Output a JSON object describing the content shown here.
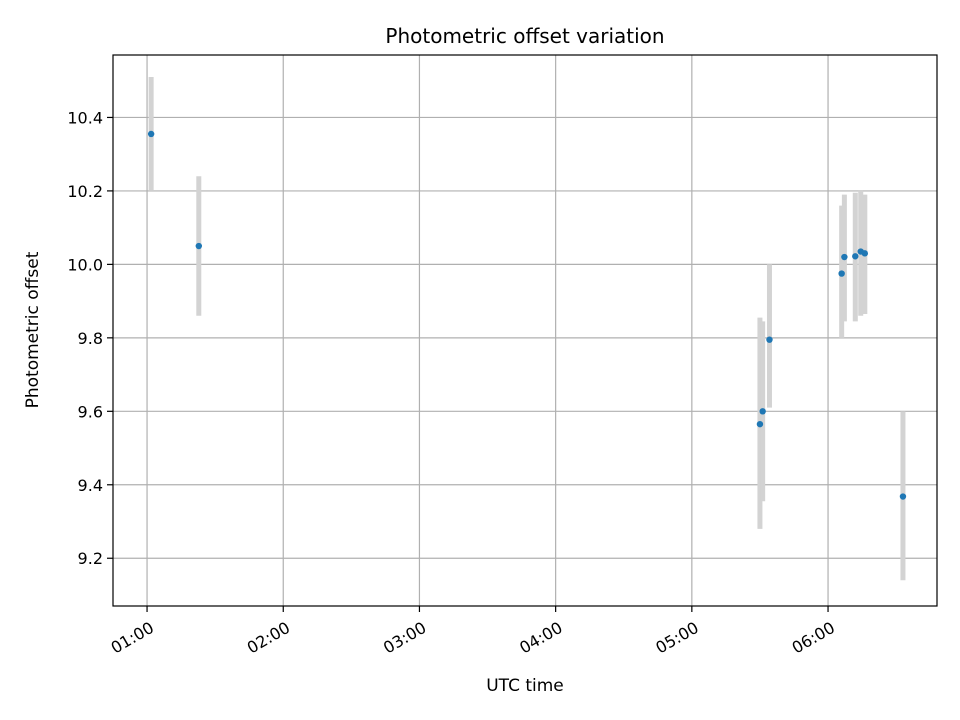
{
  "chart_data": {
    "type": "scatter",
    "title": "Photometric offset variation",
    "xlabel": "UTC time",
    "ylabel": "Photometric offset",
    "grid": true,
    "x_unit": "UTC hours",
    "xlim": [
      0.75,
      6.8
    ],
    "ylim": [
      9.07,
      10.57
    ],
    "x_ticks": [
      {
        "value": 1,
        "label": "01:00"
      },
      {
        "value": 2,
        "label": "02:00"
      },
      {
        "value": 3,
        "label": "03:00"
      },
      {
        "value": 4,
        "label": "04:00"
      },
      {
        "value": 5,
        "label": "05:00"
      },
      {
        "value": 6,
        "label": "06:00"
      }
    ],
    "y_ticks": [
      {
        "value": 9.2,
        "label": "9.2"
      },
      {
        "value": 9.4,
        "label": "9.4"
      },
      {
        "value": 9.6,
        "label": "9.6"
      },
      {
        "value": 9.8,
        "label": "9.8"
      },
      {
        "value": 10.0,
        "label": "10.0"
      },
      {
        "value": 10.2,
        "label": "10.2"
      },
      {
        "value": 10.4,
        "label": "10.4"
      }
    ],
    "series": [
      {
        "marker_color": "#1f77b4",
        "errorbar_color": "#d3d3d3",
        "points": [
          {
            "x": 1.03,
            "y": 10.355,
            "err_low": 10.2,
            "err_high": 10.51
          },
          {
            "x": 1.38,
            "y": 10.05,
            "err_low": 9.86,
            "err_high": 10.24
          },
          {
            "x": 5.5,
            "y": 9.565,
            "err_low": 9.28,
            "err_high": 9.855
          },
          {
            "x": 5.52,
            "y": 9.6,
            "err_low": 9.355,
            "err_high": 9.845
          },
          {
            "x": 5.57,
            "y": 9.795,
            "err_low": 9.61,
            "err_high": 10.0
          },
          {
            "x": 6.1,
            "y": 9.975,
            "err_low": 9.8,
            "err_high": 10.16
          },
          {
            "x": 6.12,
            "y": 10.02,
            "err_low": 9.845,
            "err_high": 10.19
          },
          {
            "x": 6.2,
            "y": 10.022,
            "err_low": 9.845,
            "err_high": 10.195
          },
          {
            "x": 6.24,
            "y": 10.035,
            "err_low": 9.86,
            "err_high": 10.2
          },
          {
            "x": 6.27,
            "y": 10.03,
            "err_low": 9.865,
            "err_high": 10.19
          },
          {
            "x": 6.55,
            "y": 9.368,
            "err_low": 9.14,
            "err_high": 9.6
          }
        ]
      }
    ]
  }
}
